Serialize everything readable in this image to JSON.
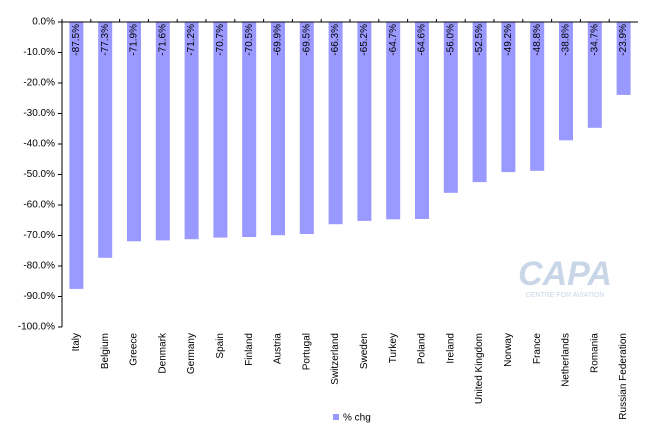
{
  "chart_data": {
    "type": "bar",
    "title": "",
    "xlabel": "",
    "ylabel": "",
    "ylim": [
      -100,
      0
    ],
    "y_tick_step": 10,
    "y_tick_format": "0.0%",
    "grid": false,
    "legend_position": "bottom",
    "categories": [
      "Italy",
      "Belgium",
      "Greece",
      "Denmark",
      "Germany",
      "Spain",
      "Finland",
      "Austria",
      "Portugal",
      "Switzerland",
      "Sweden",
      "Turkey",
      "Poland",
      "Ireland",
      "United Kingdom",
      "Norway",
      "France",
      "Netherlands",
      "Romania",
      "Russian Federation"
    ],
    "series": [
      {
        "name": "% chg",
        "color": "#9999ff",
        "values": [
          -87.5,
          -77.3,
          -71.9,
          -71.6,
          -71.2,
          -70.7,
          -70.5,
          -69.9,
          -69.5,
          -66.3,
          -65.2,
          -64.7,
          -64.6,
          -56.0,
          -52.5,
          -49.2,
          -48.8,
          -38.8,
          -34.7,
          -23.9
        ],
        "labels": [
          "-87.5%",
          "-77.3%",
          "-71.9%",
          "-71.6%",
          "-71.2%",
          "-70.7%",
          "-70.5%",
          "-69.9%",
          "-69.5%",
          "-66.3%",
          "-65.2%",
          "-64.7%",
          "-64.6%",
          "-56.0%",
          "-52.5%",
          "-49.2%",
          "-48.8%",
          "-38.8%",
          "-34.7%",
          "-23.9%"
        ]
      }
    ]
  },
  "watermark": {
    "text": "CAPA",
    "subtext": "CENTRE FOR AVIATION",
    "color": "#c9d6e8"
  }
}
